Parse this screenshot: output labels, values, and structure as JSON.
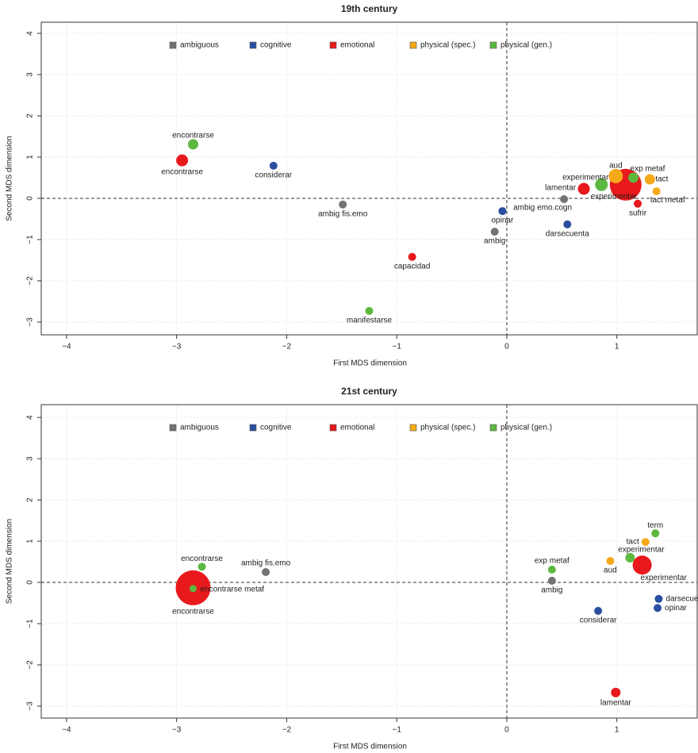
{
  "chart_data": [
    {
      "type": "scatter",
      "title": "19th century",
      "xlabel": "First MDS dimension",
      "ylabel": "Second MDS dimension",
      "xlim": [
        -4.23,
        1.73
      ],
      "ylim": [
        -3.31,
        4.27
      ],
      "xticks": [
        {
          "value": -4,
          "label": "−4"
        },
        {
          "value": -3,
          "label": "−3"
        },
        {
          "value": -2,
          "label": "−2"
        },
        {
          "value": -1,
          "label": "−1"
        },
        0,
        1
      ],
      "yticks": [
        {
          "value": -3,
          "label": "−3"
        },
        {
          "value": -2,
          "label": "−2"
        },
        {
          "value": -1,
          "label": "−1"
        },
        0,
        1,
        2,
        3,
        4
      ],
      "grid": true,
      "legend": "top",
      "hline": 0,
      "vline": 0,
      "series": [
        {
          "name": "ambiguous",
          "color": "#737373",
          "labels": [
            "ambig fis.emo",
            "ambig",
            "ambig emo.cogn"
          ],
          "x": [
            -1.49,
            -0.11,
            0.52
          ],
          "y": [
            -0.15,
            -0.81,
            -0.02
          ],
          "sizes": [
            1,
            1,
            1
          ]
        },
        {
          "name": "cognitive",
          "color": "#2b4ea0",
          "labels": [
            "considerar",
            "opinar",
            "darsecuenta"
          ],
          "x": [
            -2.12,
            -0.04,
            0.55
          ],
          "y": [
            0.79,
            -0.31,
            -0.63
          ],
          "sizes": [
            1,
            1,
            1
          ]
        },
        {
          "name": "emotional",
          "color": "#e8191c",
          "labels": [
            "encontrarse",
            "capacidad",
            "lamentar",
            "experimentar",
            "sufrir"
          ],
          "x": [
            -2.95,
            -0.86,
            0.7,
            1.08,
            1.19
          ],
          "y": [
            0.92,
            -1.42,
            0.23,
            0.33,
            -0.13
          ],
          "sizes": [
            1.5,
            1,
            1.5,
            4,
            1
          ]
        },
        {
          "name": "physical (spec.)",
          "color": "#f5a91a",
          "labels": [
            "aud",
            "tact",
            "tact metaf"
          ],
          "x": [
            0.99,
            1.3,
            1.36
          ],
          "y": [
            0.54,
            0.46,
            0.17
          ],
          "sizes": [
            1.8,
            1.3,
            1
          ]
        },
        {
          "name": "physical (gen.)",
          "color": "#5db840",
          "labels": [
            "encontrarse",
            "manifestarse",
            "experimentar",
            "exp metaf"
          ],
          "x": [
            -2.85,
            -1.25,
            0.86,
            1.15
          ],
          "y": [
            1.31,
            -2.73,
            0.33,
            0.5
          ],
          "sizes": [
            1.3,
            1,
            1.6,
            1.3
          ]
        }
      ]
    },
    {
      "type": "scatter",
      "title": "21st century",
      "xlabel": "First MDS dimension",
      "ylabel": "Second MDS dimension",
      "xlim": [
        -4.23,
        1.73
      ],
      "ylim": [
        -3.29,
        4.31
      ],
      "xticks": [
        {
          "value": -4,
          "label": "−4"
        },
        {
          "value": -3,
          "label": "−3"
        },
        {
          "value": -2,
          "label": "−2"
        },
        {
          "value": -1,
          "label": "−1"
        },
        0,
        1
      ],
      "yticks": [
        {
          "value": -3,
          "label": "−3"
        },
        {
          "value": -2,
          "label": "−2"
        },
        {
          "value": -1,
          "label": "−1"
        },
        0,
        1,
        2,
        3,
        4
      ],
      "grid": true,
      "legend": "top",
      "hline": 0,
      "vline": 0,
      "series": [
        {
          "name": "ambiguous",
          "color": "#737373",
          "labels": [
            "ambig fis.emo",
            "ambig"
          ],
          "x": [
            -2.19,
            0.41
          ],
          "y": [
            0.25,
            0.04
          ],
          "sizes": [
            1,
            1
          ]
        },
        {
          "name": "cognitive",
          "color": "#2b4ea0",
          "labels": [
            "considerar",
            "darsecuenta",
            "opinar"
          ],
          "x": [
            0.83,
            1.38,
            1.37
          ],
          "y": [
            -0.69,
            -0.4,
            -0.62
          ],
          "sizes": [
            1,
            1,
            1
          ]
        },
        {
          "name": "emotional",
          "color": "#e8191c",
          "labels": [
            "encontrarse",
            "lamentar",
            "experimentar"
          ],
          "x": [
            -2.85,
            0.99,
            1.23
          ],
          "y": [
            -0.13,
            -2.67,
            0.42
          ],
          "sizes": [
            4.4,
            1.2,
            2.4
          ]
        },
        {
          "name": "physical (spec.)",
          "color": "#f5a91a",
          "labels": [
            "aud",
            "tact"
          ],
          "x": [
            0.94,
            1.26
          ],
          "y": [
            0.52,
            0.98
          ],
          "sizes": [
            1,
            1
          ]
        },
        {
          "name": "physical (gen.)",
          "color": "#5db840",
          "labels": [
            "encontrarse",
            "encontrarse metaf",
            "exp metaf",
            "experimentar",
            "term"
          ],
          "x": [
            -2.77,
            -2.85,
            0.41,
            1.12,
            1.35
          ],
          "y": [
            0.38,
            -0.15,
            0.31,
            0.6,
            1.19
          ],
          "sizes": [
            1,
            0.9,
            1,
            1.2,
            1
          ]
        }
      ]
    }
  ]
}
